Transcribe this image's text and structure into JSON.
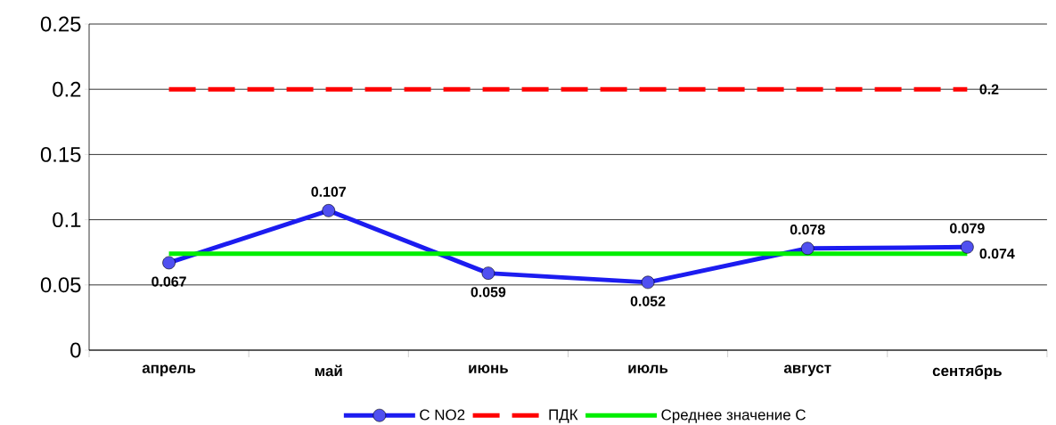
{
  "chart_data": {
    "type": "line",
    "categories": [
      "апрель",
      "май",
      "июнь",
      "июль",
      "август",
      "сентябрь"
    ],
    "series": [
      {
        "name": "C NO2",
        "color": "#1c1cf0",
        "values": [
          0.067,
          0.107,
          0.059,
          0.052,
          0.078,
          0.079
        ],
        "marker": "circle",
        "line_style": "solid",
        "value_labels": [
          "0.067",
          "0.107",
          "0.059",
          "0.052",
          "0.078",
          "0.079"
        ]
      },
      {
        "name": "ПДК",
        "color": "#ff0000",
        "values": [
          0.2,
          0.2,
          0.2,
          0.2,
          0.2,
          0.2
        ],
        "marker": "none",
        "line_style": "dashed",
        "value_labels": [
          null,
          null,
          null,
          null,
          null,
          "0.2"
        ]
      },
      {
        "name": "Среднее значение C",
        "color": "#00ee00",
        "values": [
          0.074,
          0.074,
          0.074,
          0.074,
          0.074,
          0.074
        ],
        "marker": "none",
        "line_style": "solid",
        "value_labels": [
          null,
          null,
          null,
          null,
          null,
          "0.074"
        ]
      }
    ],
    "ylim": [
      0,
      0.25
    ],
    "yticks": [
      0,
      0.05,
      0.1,
      0.15,
      0.2,
      0.25
    ],
    "grid": "y",
    "legend": "bottom"
  }
}
